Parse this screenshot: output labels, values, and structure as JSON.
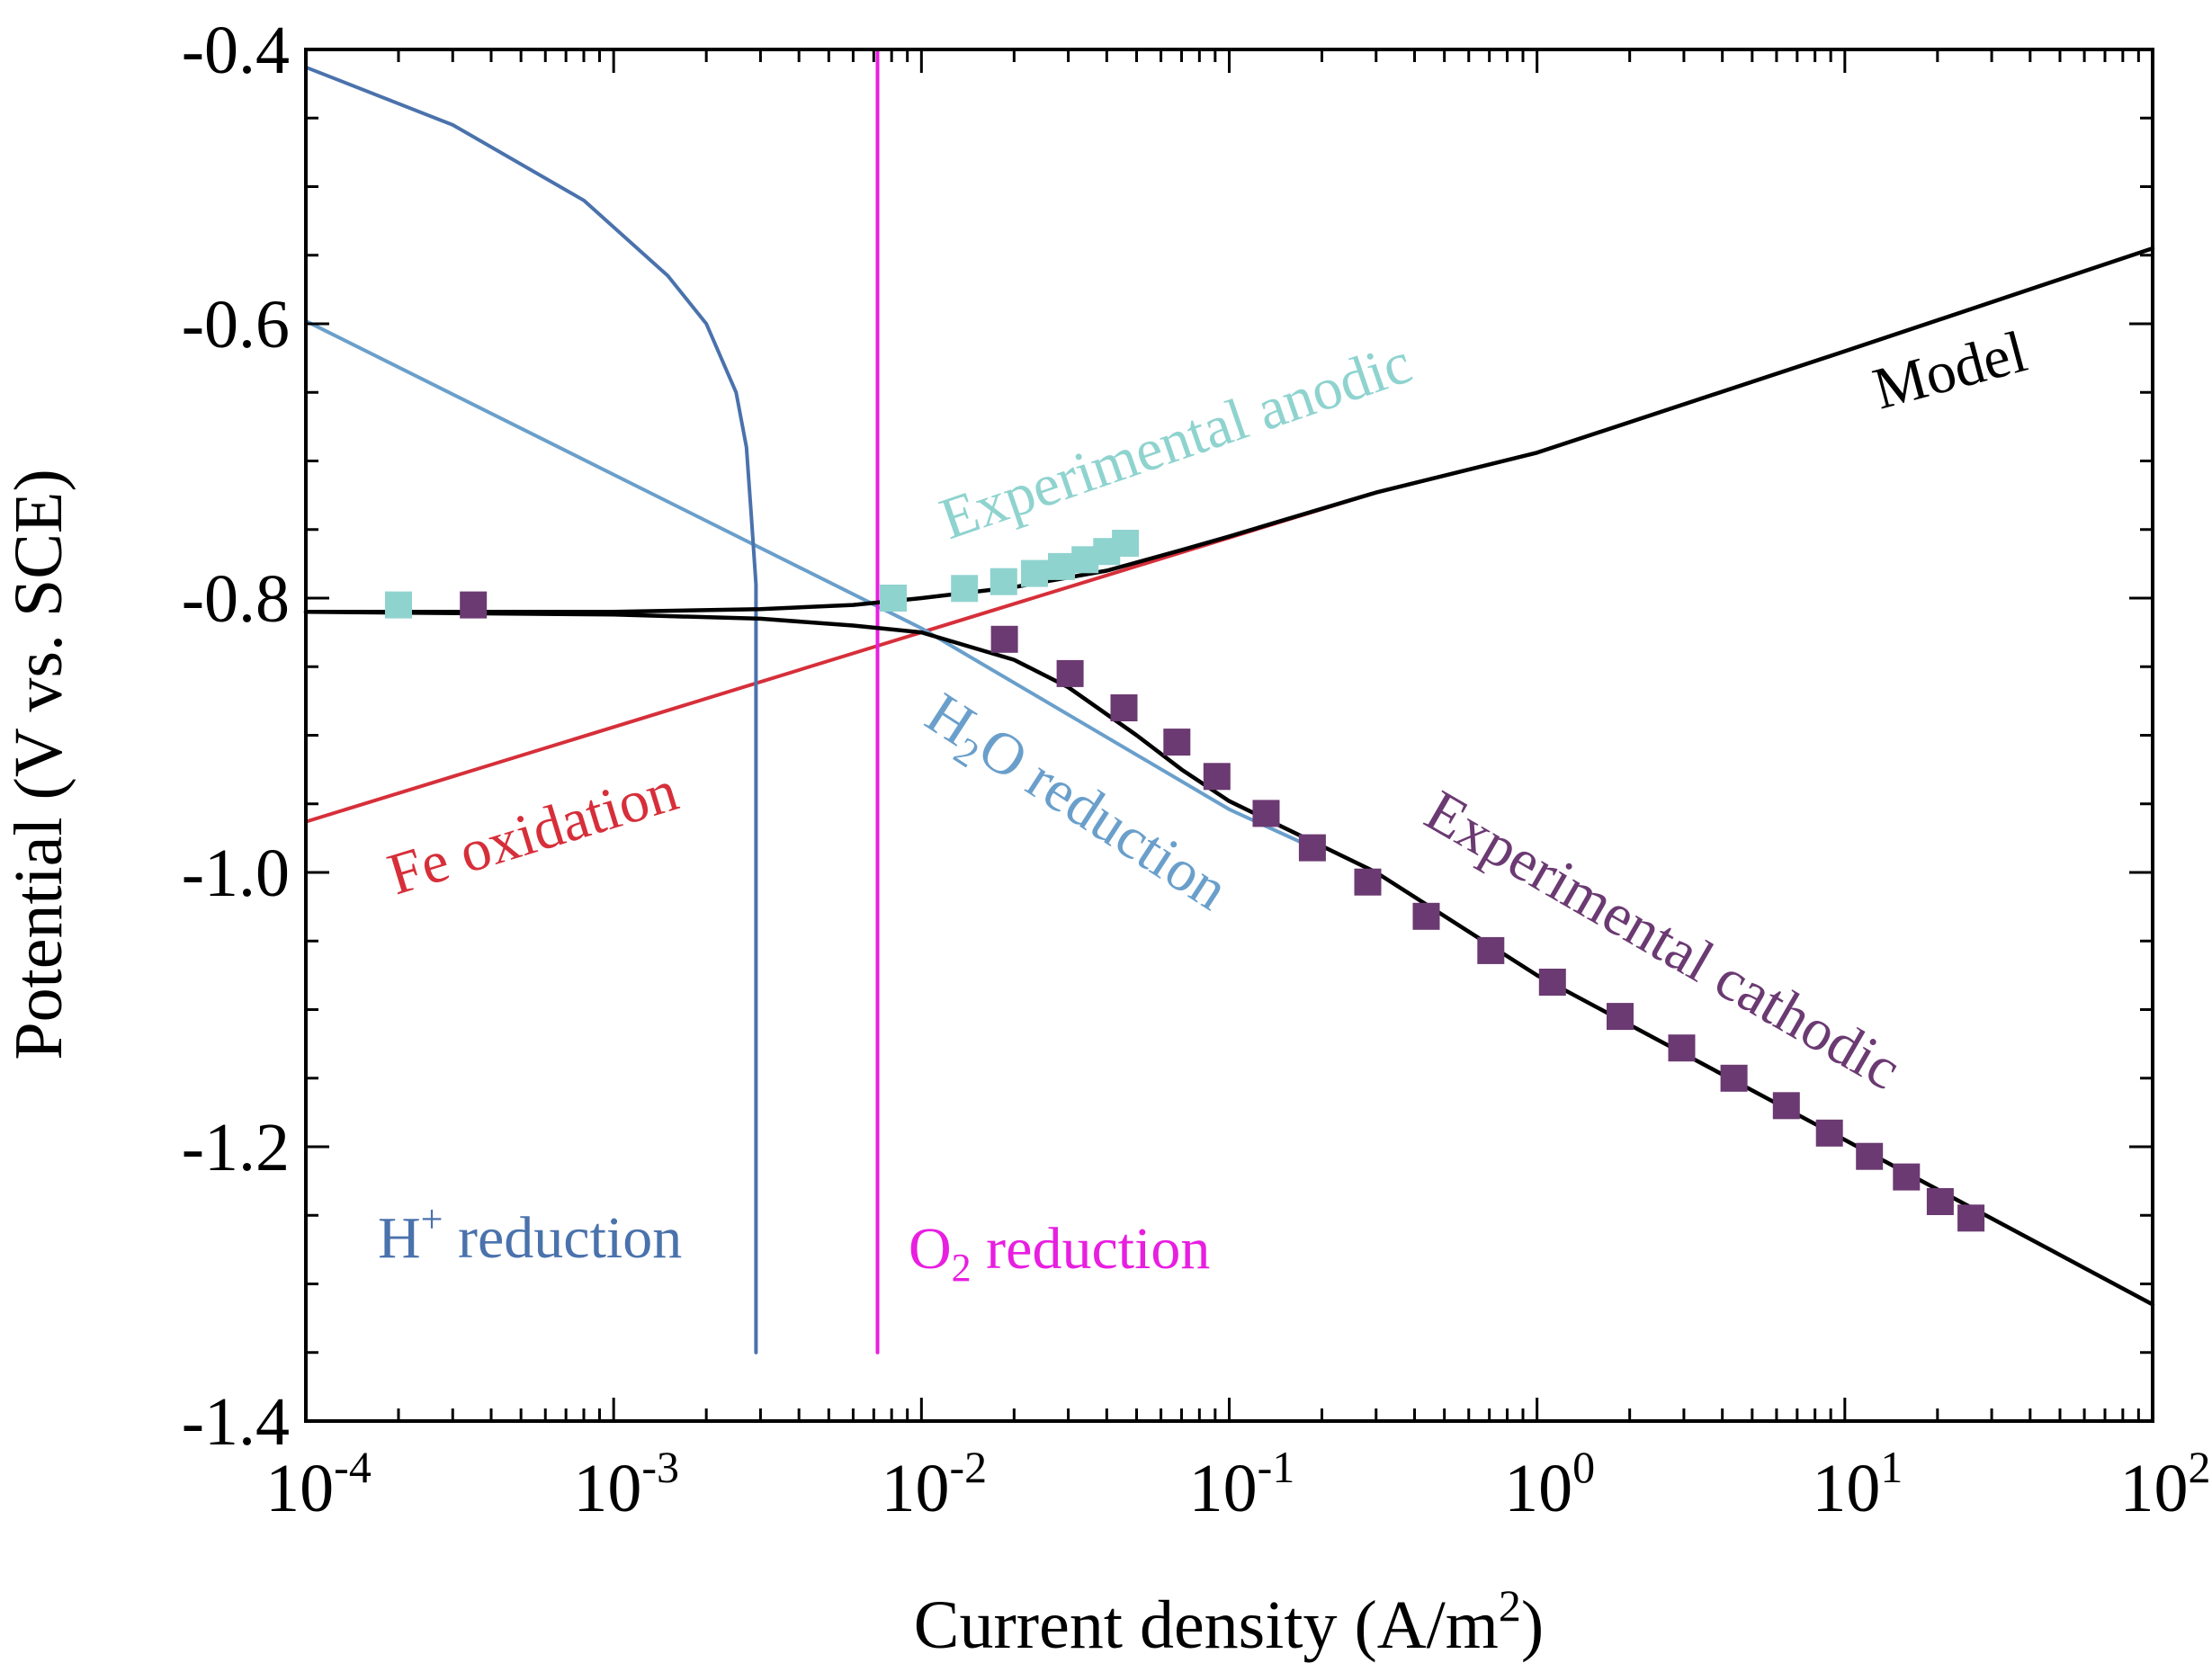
{
  "chart_data": {
    "type": "line",
    "title": "",
    "xlabel": "Current density (A/m",
    "xlabel_sup": "2",
    "xlabel_end": ")",
    "ylabel": "Potential (V vs. SCE)",
    "xscale": "log",
    "xlim": [
      0.0001,
      100
    ],
    "ylim": [
      -1.4,
      -0.4
    ],
    "grid": false,
    "legend": "none",
    "x_ticks": [
      {
        "base": "10",
        "exp": "-4",
        "value": 0.0001
      },
      {
        "base": "10",
        "exp": "-3",
        "value": 0.001
      },
      {
        "base": "10",
        "exp": "-2",
        "value": 0.01
      },
      {
        "base": "10",
        "exp": "-1",
        "value": 0.1
      },
      {
        "base": "10",
        "exp": "0",
        "value": 1
      },
      {
        "base": "10",
        "exp": "1",
        "value": 10
      },
      {
        "base": "10",
        "exp": "2",
        "value": 100
      }
    ],
    "y_ticks": [
      {
        "label": "-0.4",
        "value": -0.4
      },
      {
        "label": "-0.6",
        "value": -0.6
      },
      {
        "label": "-0.8",
        "value": -0.8
      },
      {
        "label": "-1.0",
        "value": -1.0
      },
      {
        "label": "-1.2",
        "value": -1.2
      },
      {
        "label": "-1.4",
        "value": -1.4
      }
    ],
    "colors": {
      "model": "#000000",
      "fe_oxidation": "#d62f3a",
      "h2o_reduction": "#6a9fcb",
      "h_reduction": "#4a72ac",
      "o2_reduction": "#e81ee0",
      "exp_anodic": "#8fd3cf",
      "exp_cathodic": "#6b3a72"
    },
    "series": [
      {
        "name": "Fe oxidation",
        "key": "fe_oxidation",
        "kind": "line",
        "x": [
          0.0001,
          0.3
        ],
        "y": [
          -0.963,
          -0.723
        ]
      },
      {
        "name": "H2O reduction",
        "key": "h2o_reduction",
        "kind": "line",
        "x": [
          0.0001,
          0.01,
          0.1,
          0.2
        ],
        "y": [
          -0.598,
          -0.822,
          -0.954,
          -0.985
        ]
      },
      {
        "name": "H+ reduction",
        "key": "h_reduction",
        "kind": "line",
        "x": [
          0.0001,
          0.0003,
          0.0008,
          0.0015,
          0.002,
          0.0025,
          0.0027,
          0.0028,
          0.0029,
          0.0029,
          0.0029
        ],
        "y": [
          -0.413,
          -0.455,
          -0.51,
          -0.565,
          -0.6,
          -0.65,
          -0.69,
          -0.74,
          -0.79,
          -1.1,
          -1.35
        ]
      },
      {
        "name": "O2 reduction",
        "key": "o2_reduction",
        "kind": "line",
        "x": [
          0.0072,
          0.0072
        ],
        "y": [
          -0.4,
          -1.35
        ]
      },
      {
        "name": "Model (anodic)",
        "key": "model",
        "kind": "line",
        "x": [
          0.0001,
          0.001,
          0.003,
          0.006,
          0.01,
          0.02,
          0.04,
          0.07,
          0.1,
          0.3,
          1,
          10,
          100
        ],
        "y": [
          -0.81,
          -0.81,
          -0.808,
          -0.805,
          -0.8,
          -0.792,
          -0.78,
          -0.765,
          -0.755,
          -0.723,
          -0.694,
          -0.62,
          -0.545
        ]
      },
      {
        "name": "Model (cathodic)",
        "key": "model",
        "kind": "line",
        "x": [
          0.0001,
          0.001,
          0.003,
          0.006,
          0.01,
          0.02,
          0.03,
          0.05,
          0.07,
          0.1,
          0.3,
          1,
          10,
          100
        ],
        "y": [
          -0.81,
          -0.812,
          -0.815,
          -0.82,
          -0.825,
          -0.845,
          -0.865,
          -0.9,
          -0.925,
          -0.948,
          -1.0,
          -1.075,
          -1.195,
          -1.315
        ]
      },
      {
        "name": "Experimental anodic",
        "key": "exp_anodic",
        "kind": "scatter",
        "x": [
          0.0002,
          0.0081,
          0.0138,
          0.0185,
          0.0233,
          0.0285,
          0.034,
          0.04,
          0.046
        ],
        "y": [
          -0.805,
          -0.8,
          -0.793,
          -0.788,
          -0.782,
          -0.777,
          -0.772,
          -0.766,
          -0.76
        ]
      },
      {
        "name": "Experimental cathodic",
        "key": "exp_cathodic",
        "kind": "scatter",
        "x": [
          0.00035,
          0.0186,
          0.0304,
          0.0455,
          0.0676,
          0.0912,
          0.1318,
          0.1862,
          0.2818,
          0.4365,
          0.7079,
          1.122,
          1.862,
          2.951,
          4.365,
          6.457,
          8.913,
          12.02,
          15.85,
          20.42,
          25.7
        ],
        "y": [
          -0.805,
          -0.83,
          -0.855,
          -0.88,
          -0.905,
          -0.93,
          -0.957,
          -0.982,
          -1.007,
          -1.032,
          -1.057,
          -1.08,
          -1.105,
          -1.128,
          -1.15,
          -1.17,
          -1.19,
          -1.207,
          -1.222,
          -1.24,
          -1.252
        ]
      }
    ],
    "annotations": {
      "model": {
        "text": "Model"
      },
      "exp_anodic": {
        "text": "Experimental anodic"
      },
      "exp_cathodic": {
        "text": "Experimental cathodic"
      },
      "fe_oxidation": {
        "text": "Fe oxidation"
      },
      "h2o_reduction": {
        "prefix": "H",
        "sub": "2",
        "suffix": "O reduction"
      },
      "h_reduction": {
        "prefix": "H",
        "sup": "+",
        "suffix": " reduction"
      },
      "o2_reduction": {
        "prefix": "O",
        "sub": "2",
        "suffix": " reduction"
      }
    }
  }
}
